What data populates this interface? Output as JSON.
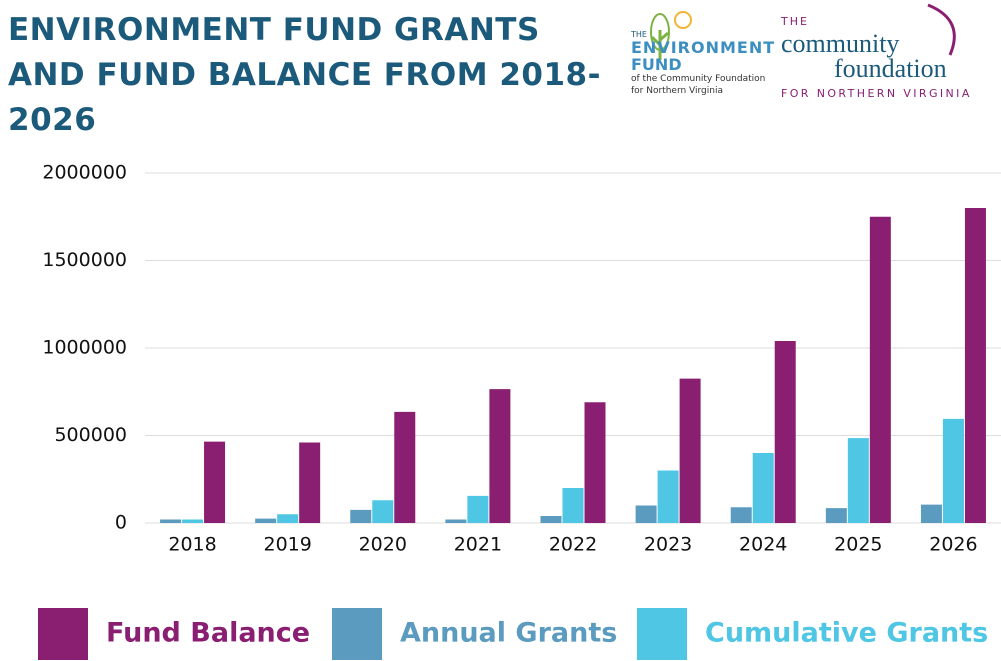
{
  "header": {
    "logo_left": {
      "line1": "THE",
      "line2": "ENVIRONMENT",
      "line3": "FUND",
      "line4": "of the Community Foundation",
      "line5": "for Northern Virginia"
    },
    "logo_right": {
      "line1": "THE",
      "line2": "community",
      "line3": "foundation",
      "line4": "FOR NORTHERN VIRGINIA"
    }
  },
  "chart_data": {
    "type": "bar",
    "title": "ENVIRONMENT FUND GRANTS AND FUND BALANCE FROM 2018-2026",
    "categories": [
      "2018",
      "2019",
      "2020",
      "2021",
      "2022",
      "2023",
      "2024",
      "2025",
      "2026"
    ],
    "series": [
      {
        "name": "Fund Balance",
        "color": "#8a1f72",
        "values": [
          465000,
          460000,
          635000,
          765000,
          690000,
          825000,
          1040000,
          1750000,
          1800000
        ]
      },
      {
        "name": "Annual Grants",
        "color": "#5b9bbf",
        "values": [
          20000,
          25000,
          75000,
          20000,
          40000,
          100000,
          90000,
          85000,
          105000
        ]
      },
      {
        "name": "Cumulative Grants",
        "color": "#4fc6e4",
        "values": [
          20000,
          50000,
          130000,
          155000,
          200000,
          300000,
          400000,
          485000,
          595000
        ]
      }
    ],
    "ylim": [
      0,
      2000000
    ],
    "yticks": [
      0,
      500000,
      1000000,
      1500000,
      2000000
    ],
    "grid": true,
    "legend": "bottom"
  }
}
